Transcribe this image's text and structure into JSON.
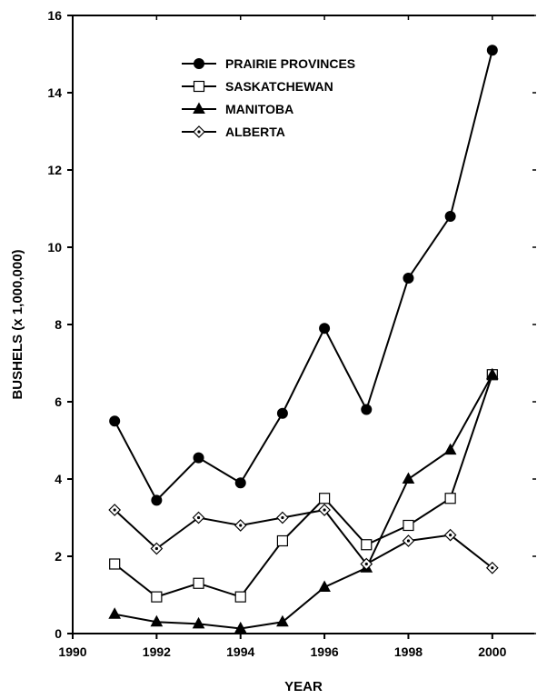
{
  "chart_data": {
    "type": "line",
    "xlabel": "YEAR",
    "ylabel": "BUSHELS (x 1,000,000)",
    "xlim": [
      1990,
      2001
    ],
    "ylim": [
      0,
      16
    ],
    "x_ticks": [
      "1990",
      "1992",
      "1994",
      "1996",
      "1998",
      "2000"
    ],
    "y_ticks": [
      "0",
      "2",
      "4",
      "6",
      "8",
      "10",
      "12",
      "14",
      "16"
    ],
    "x": [
      1991,
      1992,
      1993,
      1994,
      1995,
      1996,
      1997,
      1998,
      1999,
      2000
    ],
    "legend_position": "upper-left",
    "grid": false,
    "series": [
      {
        "name": "PRAIRIE PROVINCES",
        "marker": "filled-circle",
        "color": "#000000",
        "values": [
          5.5,
          3.45,
          4.55,
          3.9,
          5.7,
          7.9,
          5.8,
          9.2,
          10.8,
          15.1
        ]
      },
      {
        "name": "SASKATCHEWAN",
        "marker": "open-square",
        "color": "#000000",
        "values": [
          1.8,
          0.95,
          1.3,
          0.95,
          2.4,
          3.5,
          2.3,
          2.8,
          3.5,
          6.7
        ]
      },
      {
        "name": "MANITOBA",
        "marker": "filled-triangle",
        "color": "#000000",
        "values": [
          0.5,
          0.3,
          0.25,
          0.13,
          0.3,
          1.2,
          1.7,
          4.0,
          4.75,
          6.7
        ]
      },
      {
        "name": "ALBERTA",
        "marker": "open-diamond-dot",
        "color": "#000000",
        "values": [
          3.2,
          2.2,
          3.0,
          2.8,
          3.0,
          3.2,
          1.8,
          2.4,
          2.55,
          1.7
        ]
      }
    ]
  }
}
